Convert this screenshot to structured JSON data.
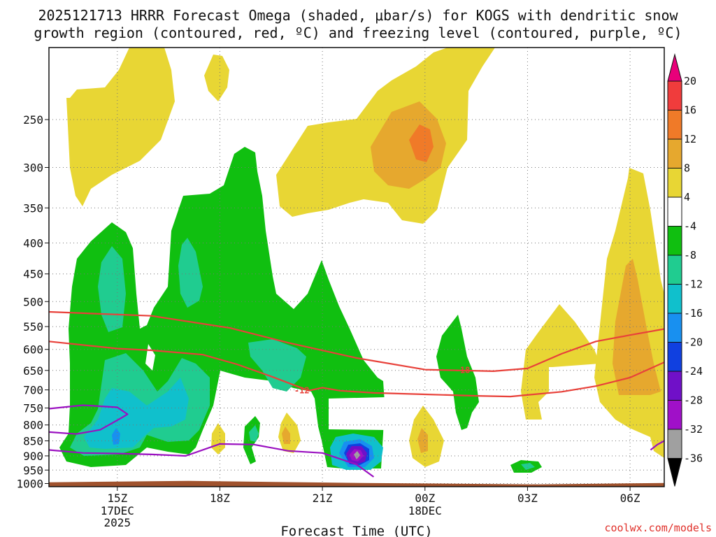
{
  "chart_data": {
    "type": "heatmap",
    "title": "2025121713 HRRR Forecast Omega (shaded, μbar/s) for KOGS with dendritic snow growth region (contoured, red, ºC) and freezing level (contoured, purple, ºC)",
    "title_lines": [
      "2025121713 HRRR Forecast Omega (shaded, μbar/s) for KOGS with dendritic snow",
      "growth region (contoured, red, ºC) and freezing level (contoured, purple, ºC)"
    ],
    "xlabel": "Forecast Time (UTC)",
    "ylabel": "",
    "x_ticks": [
      {
        "label": "15Z",
        "sub": [
          "17DEC",
          "2025"
        ],
        "hour": 2
      },
      {
        "label": "18Z",
        "sub": [],
        "hour": 5
      },
      {
        "label": "21Z",
        "sub": [],
        "hour": 8
      },
      {
        "label": "00Z",
        "sub": [
          "18DEC"
        ],
        "hour": 11
      },
      {
        "label": "03Z",
        "sub": [],
        "hour": 14
      },
      {
        "label": "06Z",
        "sub": [],
        "hour": 17
      }
    ],
    "xlim_hours": [
      0,
      18
    ],
    "y_levels_hpa": [
      250,
      300,
      350,
      400,
      450,
      500,
      550,
      600,
      650,
      700,
      750,
      800,
      850,
      900,
      950,
      1000
    ],
    "ylim_hpa": [
      190,
      1012
    ],
    "y_scale": "log",
    "colorbar": {
      "unit": "μbar/s",
      "levels": [
        20,
        16,
        12,
        8,
        4,
        -4,
        -8,
        -12,
        -16,
        -20,
        -24,
        -28,
        -32,
        -36
      ],
      "colors": [
        "#e8007a",
        "#f03c3c",
        "#f07a28",
        "#e6a82e",
        "#e8d634",
        "#ffffff",
        "#10bf10",
        "#20cc90",
        "#10c0cc",
        "#1890f0",
        "#1040e0",
        "#7010c8",
        "#a010c8",
        "#a0a0a0",
        "#000000"
      ]
    },
    "contour_labels": [
      {
        "text": "-12",
        "series": "dendritic_-12"
      },
      {
        "text": "-18",
        "series": "dendritic_-18"
      }
    ],
    "contours": [
      {
        "name": "dendritic_-18",
        "color": "#e8413a",
        "points": [
          [
            0,
            520
          ],
          [
            3,
            528
          ],
          [
            5.3,
            553
          ],
          [
            7,
            585
          ],
          [
            9,
            620
          ],
          [
            11,
            648
          ],
          [
            13,
            652
          ],
          [
            14,
            645
          ],
          [
            15,
            610
          ],
          [
            16,
            582
          ],
          [
            17,
            568
          ],
          [
            18,
            555
          ]
        ]
      },
      {
        "name": "dendritic_-12",
        "color": "#e8413a",
        "points": [
          [
            0,
            582
          ],
          [
            2,
            598
          ],
          [
            3,
            602
          ],
          [
            4.5,
            612
          ],
          [
            5.5,
            635
          ],
          [
            6.5,
            665
          ],
          [
            7.6,
            702
          ],
          [
            8,
            694
          ],
          [
            8.5,
            702
          ],
          [
            9.5,
            708
          ],
          [
            11,
            712
          ],
          [
            12.5,
            716
          ],
          [
            13.5,
            718
          ],
          [
            15,
            705
          ],
          [
            16,
            690
          ],
          [
            17,
            668
          ],
          [
            18,
            630
          ]
        ]
      },
      {
        "name": "freezing_level_upper",
        "color": "#9a10c0",
        "points": [
          [
            0,
            752
          ],
          [
            1,
            742
          ],
          [
            2,
            748
          ],
          [
            2.3,
            768
          ],
          [
            2.1,
            780
          ],
          [
            1.5,
            815
          ],
          [
            0.8,
            828
          ],
          [
            0,
            822
          ]
        ]
      },
      {
        "name": "freezing_level_lower",
        "color": "#9a10c0",
        "points": [
          [
            0,
            880
          ],
          [
            1,
            890
          ],
          [
            2,
            892
          ],
          [
            3,
            895
          ],
          [
            4,
            900
          ],
          [
            5,
            860
          ],
          [
            6,
            862
          ],
          [
            7,
            883
          ],
          [
            8,
            890
          ],
          [
            9,
            930
          ],
          [
            9.5,
            975
          ]
        ]
      },
      {
        "name": "freezing_level_right",
        "color": "#9a10c0",
        "points": [
          [
            17.6,
            880
          ],
          [
            17.8,
            862
          ],
          [
            18,
            850
          ]
        ]
      }
    ],
    "omega_regions": [
      {
        "name": "rising_band_left",
        "value_range": [
          -8,
          -4
        ],
        "color": "#10bf10"
      },
      {
        "name": "rising_core_left",
        "value_range": [
          -12,
          -8
        ],
        "color": "#20cc90"
      },
      {
        "name": "rising_max_21z",
        "value_range": [
          -36,
          -28
        ],
        "color": "#a010c8"
      },
      {
        "name": "sinking_upper_00z",
        "value_range": [
          12,
          16
        ],
        "color": "#f07a28"
      },
      {
        "name": "sinking_right_06z",
        "value_range": [
          8,
          12
        ],
        "color": "#e6a82e"
      }
    ],
    "ground": {
      "color": "#a0522d",
      "from_hpa": 990
    }
  },
  "watermark": "coolwx.com/models"
}
